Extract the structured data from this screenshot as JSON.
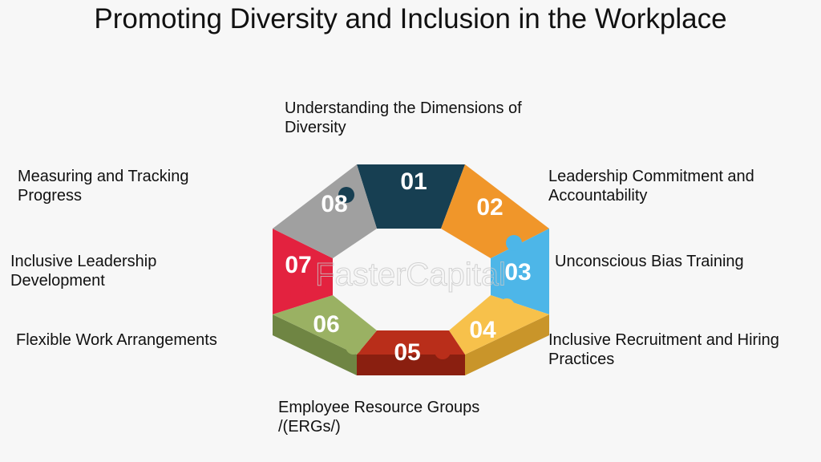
{
  "title": "Promoting Diversity and Inclusion in the Workplace",
  "steps": [
    {
      "number": "01",
      "label": "Understanding the Dimensions of Diversity",
      "color": "#173f52",
      "side": "#0f2c3a"
    },
    {
      "number": "02",
      "label": "Leadership Commitment and Accountability",
      "color": "#f0962a",
      "side": "#c4741a"
    },
    {
      "number": "03",
      "label": "Unconscious Bias Training",
      "color": "#4db6e8",
      "side": "#2f8fbd"
    },
    {
      "number": "04",
      "label": "Inclusive Recruitment and Hiring Practices",
      "color": "#f7c14b",
      "side": "#c9952a"
    },
    {
      "number": "05",
      "label": "Employee Resource Groups /(ERGs/)",
      "color": "#b92e1a",
      "side": "#8a1f10"
    },
    {
      "number": "06",
      "label": "Flexible Work Arrangements",
      "color": "#9ab163",
      "side": "#6f8543"
    },
    {
      "number": "07",
      "label": "Inclusive Leadership Development",
      "color": "#e3223f",
      "side": "#a8142b"
    },
    {
      "number": "08",
      "label": "Measuring and Tracking Progress",
      "color": "#a0a0a0",
      "side": "#777777"
    }
  ],
  "watermark": "FasterCapital"
}
